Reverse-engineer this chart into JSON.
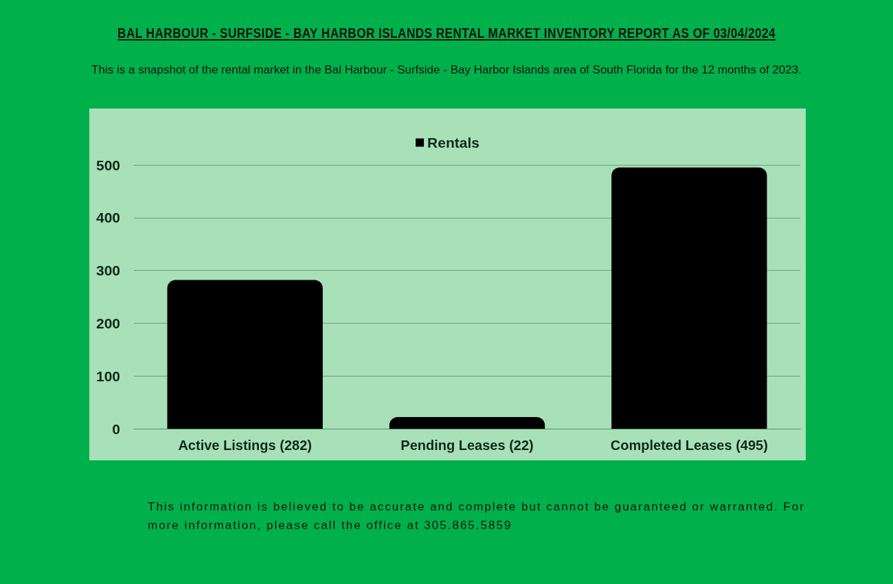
{
  "chart_data": {
    "type": "bar",
    "title": "BAL HARBOUR - SURFSIDE - BAY HARBOR ISLANDS RENTAL MARKET INVENTORY REPORT AS OF 03/04/2024",
    "subtitle": "This is a snapshot of the rental market in the Bal Harbour - Surfside - Bay Harbor Islands area of South Florida for the 12 months of 2023.",
    "categories": [
      "Active Listings (282)",
      "Pending Leases (22)",
      "Completed Leases (495)"
    ],
    "series": [
      {
        "name": "Rentals",
        "color": "#000000",
        "values": [
          282,
          22,
          495
        ]
      }
    ],
    "ylim": [
      0,
      500
    ],
    "yticks": [
      0,
      100,
      200,
      300,
      400,
      500
    ],
    "grid": "y",
    "legend": "top",
    "annotations": [
      "This information is believed to be accurate and complete but cannot be guaranteed or warranted. For more information, please call the office at 305.865.5859"
    ]
  }
}
